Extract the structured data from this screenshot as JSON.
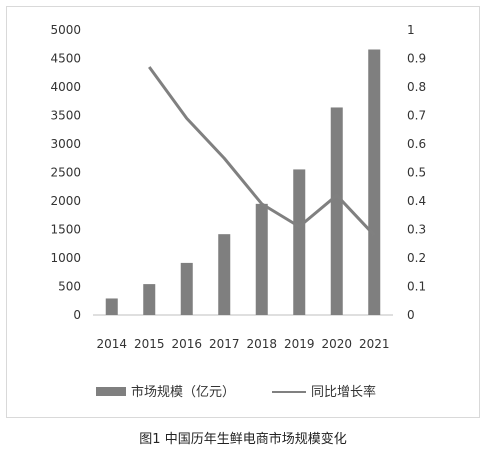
{
  "caption": "图1  中国历年生鲜电商市场规模变化",
  "colors": {
    "bar": "#7f7f7f",
    "line": "#808080",
    "axis": "#bfbfbf"
  },
  "chart_data": {
    "type": "bar",
    "categories": [
      "2014",
      "2015",
      "2016",
      "2017",
      "2018",
      "2019",
      "2020",
      "2021"
    ],
    "series": [
      {
        "name": "市场规模（亿元）",
        "type": "bar",
        "axis": "left",
        "values": [
          290,
          542,
          914,
          1418,
          1950,
          2554,
          3641,
          4658
        ]
      },
      {
        "name": "同比增长率",
        "type": "line",
        "axis": "right",
        "values": [
          null,
          0.87,
          0.69,
          0.55,
          0.39,
          0.31,
          0.42,
          0.28
        ]
      }
    ],
    "y_left": {
      "ylim": [
        0,
        5000
      ],
      "ticks": [
        "0",
        "500",
        "1000",
        "1500",
        "2000",
        "2500",
        "3000",
        "3500",
        "4000",
        "4500",
        "5000"
      ]
    },
    "y_right": {
      "ylim": [
        0,
        1
      ],
      "ticks": [
        "0",
        "0.1",
        "0.2",
        "0.3",
        "0.4",
        "0.5",
        "0.6",
        "0.7",
        "0.8",
        "0.9",
        "1"
      ]
    },
    "legend_position": "bottom",
    "grid": false
  }
}
